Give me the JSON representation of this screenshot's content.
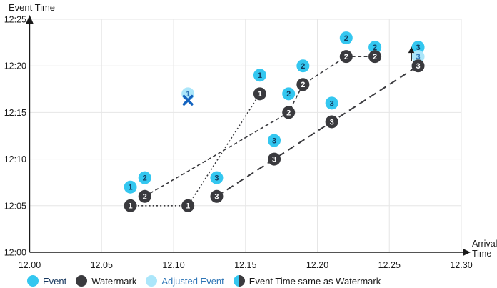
{
  "chart_data": {
    "type": "scatter",
    "title": "",
    "y_axis": {
      "title": "Event Time",
      "ticks": [
        "12:00",
        "12:05",
        "12:10",
        "12:15",
        "12:20",
        "12:25"
      ],
      "range": [
        "12:00",
        "12:25"
      ]
    },
    "x_axis": {
      "title_lines": [
        "Arrival",
        "Time"
      ],
      "ticks": [
        "12.00",
        "12.05",
        "12.10",
        "12.15",
        "12.20",
        "12.25",
        "12.30"
      ],
      "range": [
        12.0,
        12.3
      ]
    },
    "grid": true,
    "colors": {
      "event": "#34C7F0",
      "watermark": "#3A3A3E",
      "adjusted_event": "#ABE6FA",
      "event_number": "#123A5E",
      "watermark_number": "#FFFFFF",
      "adjusted_number": "#2E75B6",
      "dropped_x": "#1464C0",
      "arrow": "#1A1A1A",
      "gridline": "#E6E6E6",
      "axis": "#1A1A1A",
      "tick_text": "#1A1A1A"
    },
    "events": [
      {
        "n": "1",
        "arrival": 12.07,
        "event_time": "12:07"
      },
      {
        "n": "2",
        "arrival": 12.08,
        "event_time": "12:08"
      },
      {
        "n": "3",
        "arrival": 12.13,
        "event_time": "12:08"
      },
      {
        "n": "1",
        "arrival": 12.16,
        "event_time": "12:19"
      },
      {
        "n": "3",
        "arrival": 12.17,
        "event_time": "12:12"
      },
      {
        "n": "2",
        "arrival": 12.18,
        "event_time": "12:17"
      },
      {
        "n": "2",
        "arrival": 12.19,
        "event_time": "12:20"
      },
      {
        "n": "3",
        "arrival": 12.21,
        "event_time": "12:16"
      },
      {
        "n": "2",
        "arrival": 12.22,
        "event_time": "12:23"
      },
      {
        "n": "2",
        "arrival": 12.24,
        "event_time": "12:22"
      },
      {
        "n": "3",
        "arrival": 12.27,
        "event_time": "12:22"
      }
    ],
    "adjusted_events": [
      {
        "n": "1",
        "arrival": 12.11,
        "event_time": "12:17",
        "annotation": "dropped-x"
      },
      {
        "n": "3",
        "arrival": 12.27,
        "event_time": "12:21",
        "annotation": "arrow-up"
      }
    ],
    "watermark_lines": [
      {
        "id": "stream-1",
        "dash": "dotted",
        "points": [
          {
            "n": "1",
            "arrival": 12.07,
            "event_time": "12:05"
          },
          {
            "n": "1",
            "arrival": 12.11,
            "event_time": "12:05"
          },
          {
            "n": "1",
            "arrival": 12.16,
            "event_time": "12:17"
          }
        ]
      },
      {
        "id": "stream-2",
        "dash": "dashed",
        "points": [
          {
            "n": "2",
            "arrival": 12.08,
            "event_time": "12:06"
          },
          {
            "n": "2",
            "arrival": 12.18,
            "event_time": "12:15"
          },
          {
            "n": "2",
            "arrival": 12.19,
            "event_time": "12:18"
          },
          {
            "n": "2",
            "arrival": 12.22,
            "event_time": "12:21"
          },
          {
            "n": "2",
            "arrival": 12.24,
            "event_time": "12:21"
          }
        ]
      },
      {
        "id": "stream-3",
        "dash": "long-dash",
        "points": [
          {
            "n": "3",
            "arrival": 12.13,
            "event_time": "12:06"
          },
          {
            "n": "3",
            "arrival": 12.17,
            "event_time": "12:10"
          },
          {
            "n": "3",
            "arrival": 12.21,
            "event_time": "12:14"
          },
          {
            "n": "3",
            "arrival": 12.27,
            "event_time": "12:20"
          }
        ]
      }
    ]
  },
  "legend": {
    "items": [
      {
        "label": "Event",
        "swatch": "event",
        "label_color": "#17375E"
      },
      {
        "label": "Watermark",
        "swatch": "watermark",
        "label_color": "#1A1A1A"
      },
      {
        "label": "Adjusted Event",
        "swatch": "adjusted",
        "label_color": "#2E75B6"
      },
      {
        "label": "Event Time same as Watermark",
        "swatch": "half",
        "label_color": "#1A1A1A"
      }
    ]
  }
}
